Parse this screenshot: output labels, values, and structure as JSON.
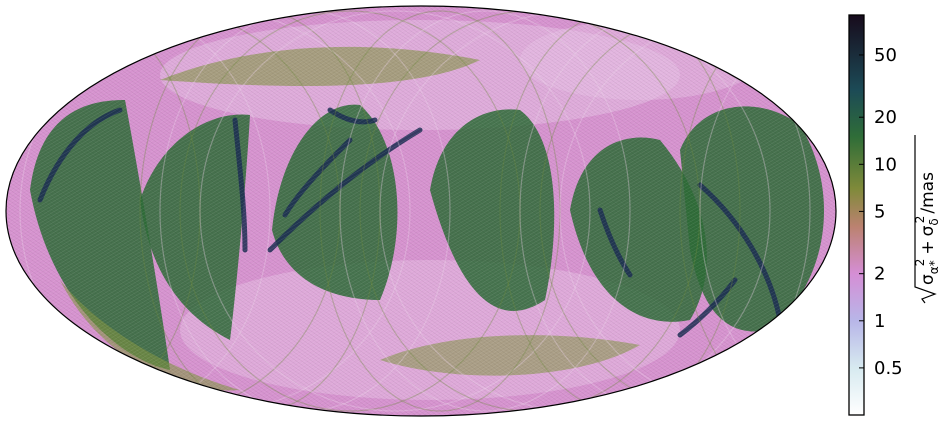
{
  "chart_data": {
    "type": "heatmap",
    "projection": "mollweide",
    "title": "",
    "colorbar": {
      "label_math": {
        "sigma": "σ",
        "sub1": "α*",
        "sub2": "δ",
        "sup": "2",
        "plus": "+",
        "unit": "/mas"
      },
      "scale": "log",
      "range": [
        0.25,
        90
      ],
      "ticks": [
        0.5,
        1,
        2,
        5,
        10,
        20,
        50
      ],
      "tick_labels": [
        "0.5",
        "1",
        "2",
        "5",
        "10",
        "20",
        "50"
      ],
      "colormap_stops": [
        {
          "value": 0.25,
          "color": "#ffffff"
        },
        {
          "value": 0.5,
          "color": "#d7eaf0"
        },
        {
          "value": 1,
          "color": "#b8b6e8"
        },
        {
          "value": 2,
          "color": "#d58ed5"
        },
        {
          "value": 4,
          "color": "#bb8270"
        },
        {
          "value": 7,
          "color": "#7f8a3a"
        },
        {
          "value": 15,
          "color": "#2f6d38"
        },
        {
          "value": 30,
          "color": "#1c4a56"
        },
        {
          "value": 90,
          "color": "#170b1c"
        }
      ]
    },
    "map": {
      "background_color": "#d693cf",
      "low_color": "#e6c0e4",
      "mid_color": "#809542",
      "high_color": "#2d6b36",
      "peak_color": "#1b2d52"
    }
  }
}
